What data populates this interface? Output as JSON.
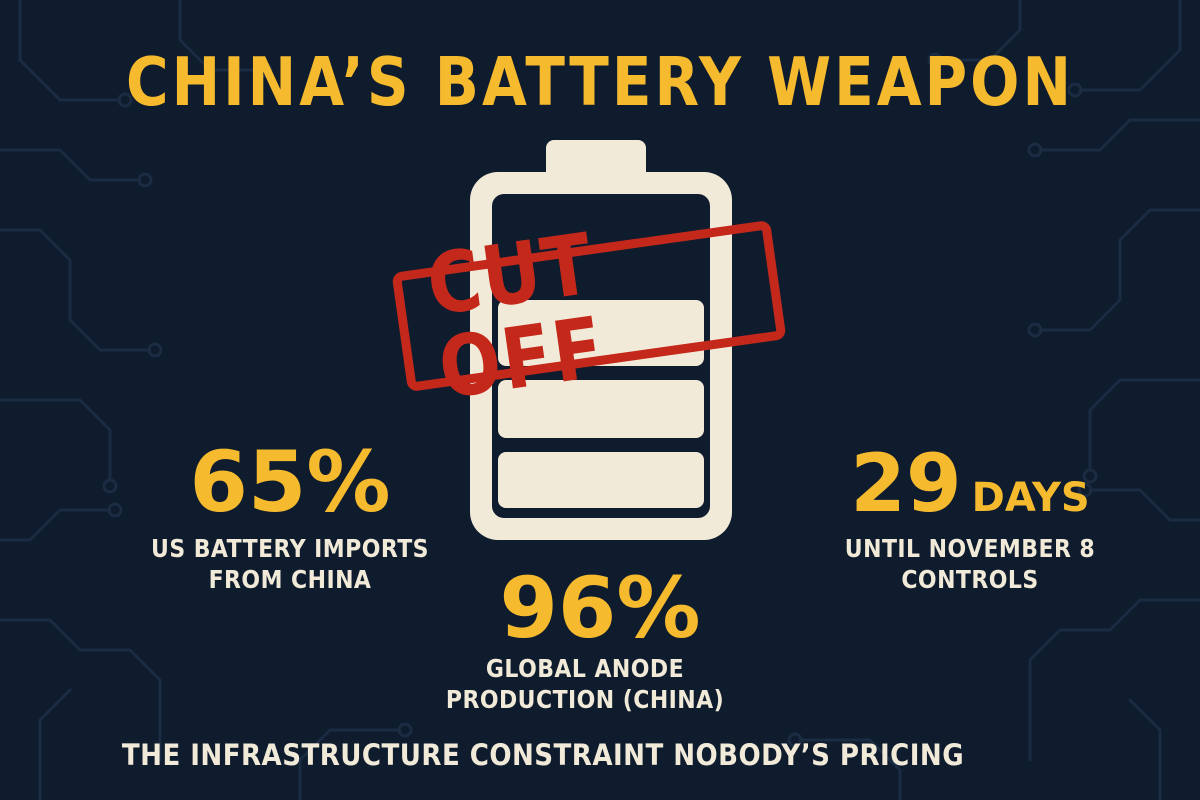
{
  "title": "CHINA’S BATTERY WEAPON",
  "stamp": "CUT OFF",
  "stats": {
    "left": {
      "value": "65%",
      "label_line1": "US BATTERY IMPORTS",
      "label_line2": "FROM CHINA"
    },
    "center": {
      "value": "96%",
      "label_line1": "GLOBAL ANODE",
      "label_line2": "PRODUCTION (CHINA)"
    },
    "right": {
      "value": "29",
      "unit": "DAYS",
      "label_line1": "UNTIL NOVEMBER 8",
      "label_line2": "CONTROLS"
    }
  },
  "tagline": "THE INFRASTRUCTURE CONSTRAINT NOBODY’S PRICING",
  "colors": {
    "background": "#0f1c2e",
    "accent": "#f6ba2e",
    "text_light": "#f2ead8",
    "stamp_red": "#c4281b",
    "battery_cream": "#f2ead8"
  }
}
